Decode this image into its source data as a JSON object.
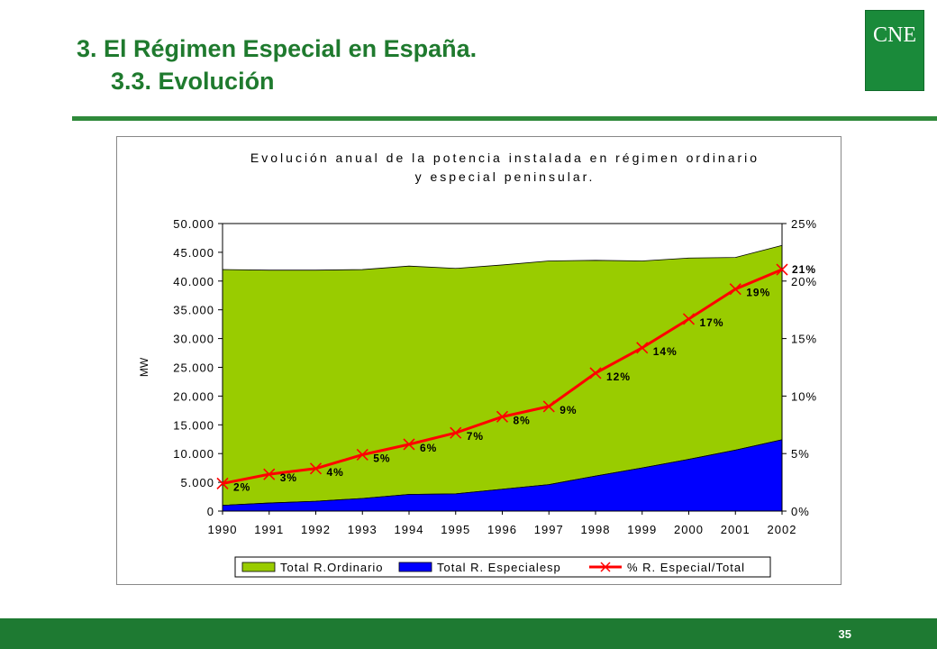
{
  "slide": {
    "title_line1": "3. El Régimen Especial en España.",
    "title_line2": "3.3. Evolución",
    "logo_text": "CNE",
    "page_number": "35",
    "colors": {
      "title": "#1f7a2e",
      "footer": "#1e7a32",
      "logo": "#1a8a3a"
    }
  },
  "chart_data": {
    "type": "area",
    "title": "Evolución anual de la potencia instalada en régimen ordinario y especial peninsular.",
    "title_lines": [
      "Evolución anual de la potencia instalada en régimen ordinario",
      "y especial peninsular."
    ],
    "ylabel": "MW",
    "ylim": [
      0,
      50000
    ],
    "y_ticks": [
      "0",
      "5.000",
      "10.000",
      "15.000",
      "20.000",
      "25.000",
      "30.000",
      "35.000",
      "40.000",
      "45.000",
      "50.000"
    ],
    "y2lim": [
      0,
      25
    ],
    "y2_ticks": [
      "0%",
      "5%",
      "10%",
      "15%",
      "20%",
      "25%"
    ],
    "x": [
      "1990",
      "1991",
      "1992",
      "1993",
      "1994",
      "1995",
      "1996",
      "1997",
      "1998",
      "1999",
      "2000",
      "2001",
      "2002"
    ],
    "stacked": true,
    "series": [
      {
        "name": "Total R.Ordinario",
        "kind": "area",
        "color": "#99cc00",
        "values": [
          41000,
          40500,
          40200,
          39800,
          39700,
          39200,
          39000,
          38900,
          37500,
          36000,
          35000,
          33500,
          33800
        ]
      },
      {
        "name": "Total R. Especialesp",
        "kind": "area",
        "color": "#0000ff",
        "values": [
          1000,
          1400,
          1700,
          2200,
          2900,
          3000,
          3800,
          4600,
          6100,
          7500,
          9000,
          10600,
          12400
        ]
      },
      {
        "name": "% R. Especial/Total",
        "kind": "line",
        "axis": "secondary",
        "color": "#ff0000",
        "values": [
          2.4,
          3.2,
          3.7,
          4.9,
          5.8,
          6.8,
          8.2,
          9.1,
          12.0,
          14.2,
          16.7,
          19.3,
          21.0
        ],
        "labels": [
          "2%",
          "3%",
          "4%",
          "5%",
          "6%",
          "7%",
          "8%",
          "9%",
          "12%",
          "14%",
          "17%",
          "19%",
          "21%"
        ]
      }
    ],
    "legend_position": "bottom",
    "grid": false
  }
}
